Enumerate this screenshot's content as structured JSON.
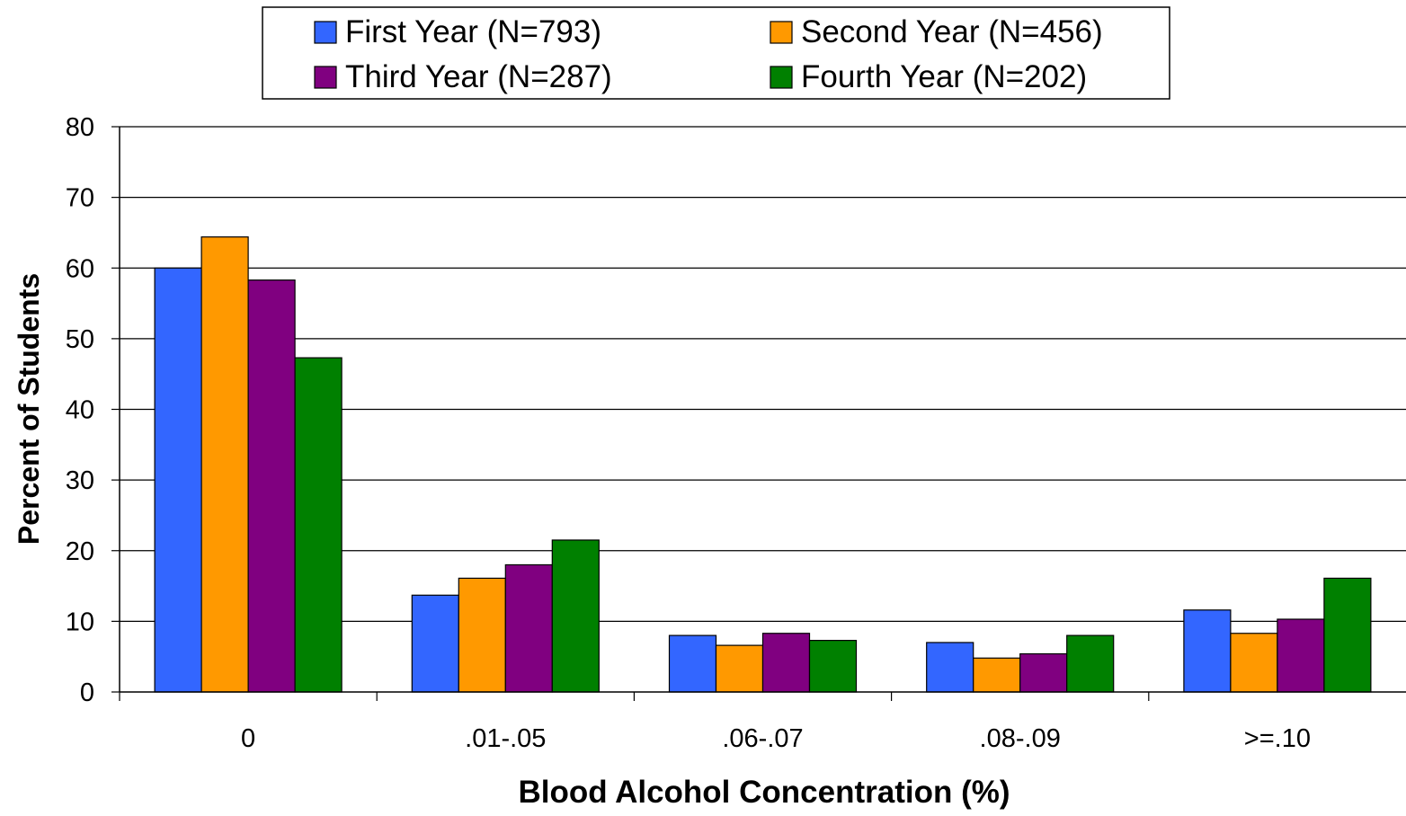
{
  "chart_data": {
    "type": "bar",
    "xlabel": "Blood Alcohol Concentration (%)",
    "ylabel": "Percent of Students",
    "ylim": [
      0,
      80
    ],
    "yticks": [
      0,
      10,
      20,
      30,
      40,
      50,
      60,
      70,
      80
    ],
    "grid": true,
    "legend_position": "top",
    "categories": [
      "0",
      ".01-.05",
      ".06-.07",
      ".08-.09",
      ">=.10"
    ],
    "series": [
      {
        "name": "First Year (N=793)",
        "color": "#3366FF",
        "values": [
          60.0,
          13.7,
          8.0,
          7.0,
          11.6
        ]
      },
      {
        "name": "Second Year (N=456)",
        "color": "#FF9900",
        "values": [
          64.4,
          16.1,
          6.6,
          4.8,
          8.3
        ]
      },
      {
        "name": "Third Year (N=287)",
        "color": "#800080",
        "values": [
          58.3,
          18.0,
          8.3,
          5.4,
          10.3
        ]
      },
      {
        "name": "Fourth Year (N=202)",
        "color": "#008000",
        "values": [
          47.3,
          21.5,
          7.3,
          8.0,
          16.1
        ]
      }
    ]
  }
}
